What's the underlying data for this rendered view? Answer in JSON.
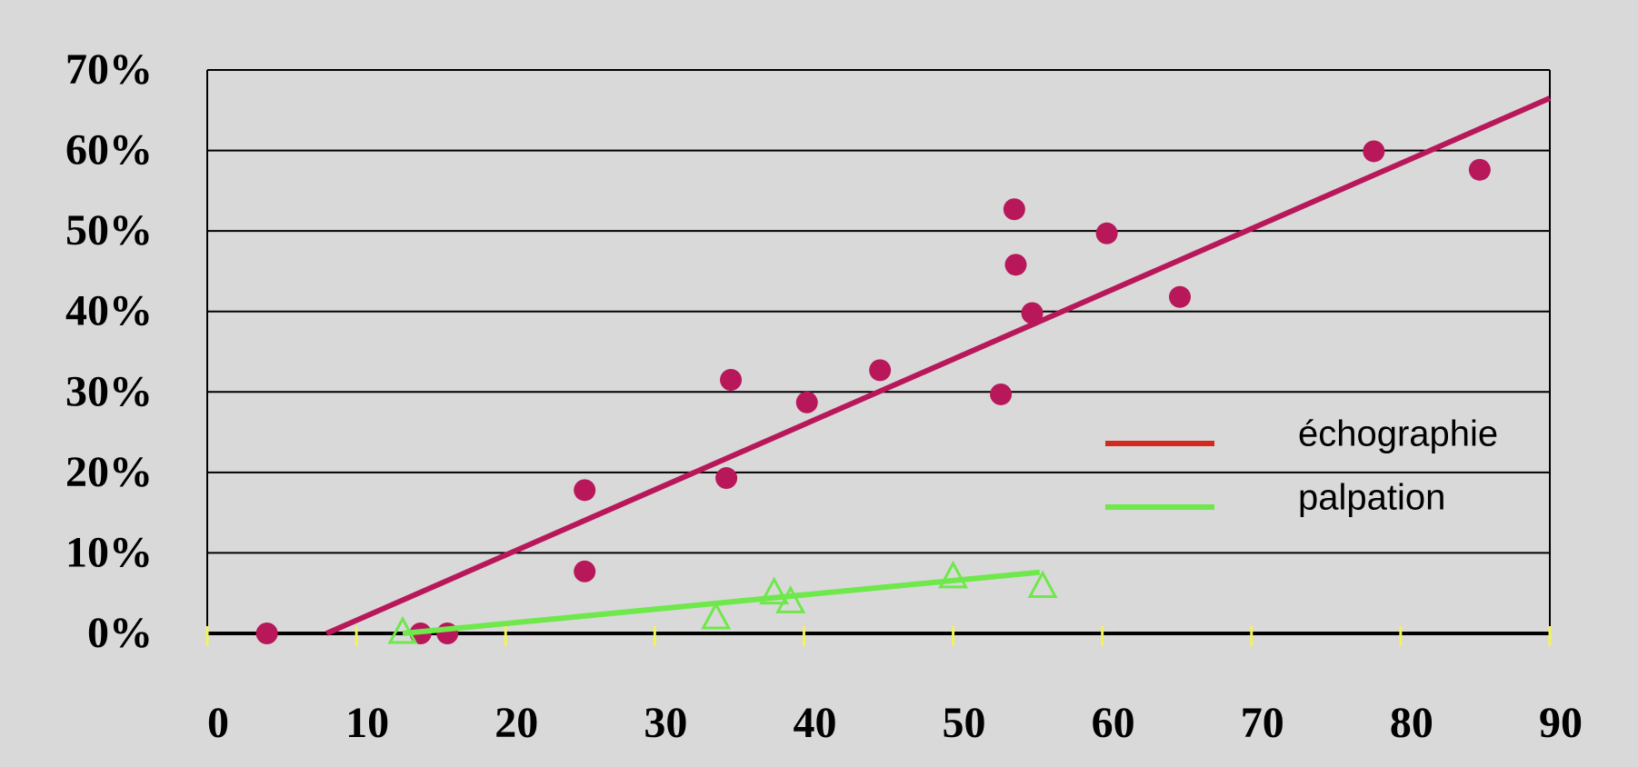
{
  "chart_data": {
    "type": "scatter",
    "xlim": [
      0,
      90
    ],
    "xticks": [
      0,
      10,
      20,
      30,
      40,
      50,
      60,
      70,
      80,
      90
    ],
    "ylim": [
      0,
      70
    ],
    "yticks": [
      {
        "value": 0,
        "label": "0%"
      },
      {
        "value": 10,
        "label": "10%"
      },
      {
        "value": 20,
        "label": "20%"
      },
      {
        "value": 30,
        "label": "30%"
      },
      {
        "value": 40,
        "label": "40%"
      },
      {
        "value": 50,
        "label": "50%"
      },
      {
        "value": 60,
        "label": "60%"
      },
      {
        "value": 70,
        "label": "70%"
      }
    ],
    "grid": true,
    "legend": "right",
    "series": [
      {
        "name": "échographie",
        "color": "#b8185a",
        "legend_color": "#d42a1e",
        "marker": "circle",
        "x": [
          4,
          14.3,
          16.1,
          25.3,
          25.3,
          34.8,
          35.1,
          40.2,
          45.1,
          53.2,
          54.1,
          54.2,
          55.3,
          60.3,
          65.2,
          78.2,
          85.3
        ],
        "values": [
          0,
          0,
          0,
          7.7,
          17.8,
          19.3,
          31.5,
          28.7,
          32.7,
          29.7,
          52.7,
          45.8,
          39.8,
          49.7,
          41.8,
          59.9,
          57.6
        ],
        "trend": {
          "color": "#b8185a",
          "x": [
            8,
            90
          ],
          "values": [
            0,
            66.5
          ]
        }
      },
      {
        "name": "palpation",
        "color": "#6ee84a",
        "legend_color": "#6ee84a",
        "marker": "triangle",
        "x": [
          13.1,
          34.1,
          38,
          39.1,
          50,
          56
        ],
        "values": [
          0,
          1.8,
          4.9,
          3.8,
          6.9,
          5.7
        ],
        "trend": {
          "color": "#6ee84a",
          "x": [
            13.1,
            55.8
          ],
          "values": [
            0,
            7.6
          ]
        }
      }
    ]
  }
}
